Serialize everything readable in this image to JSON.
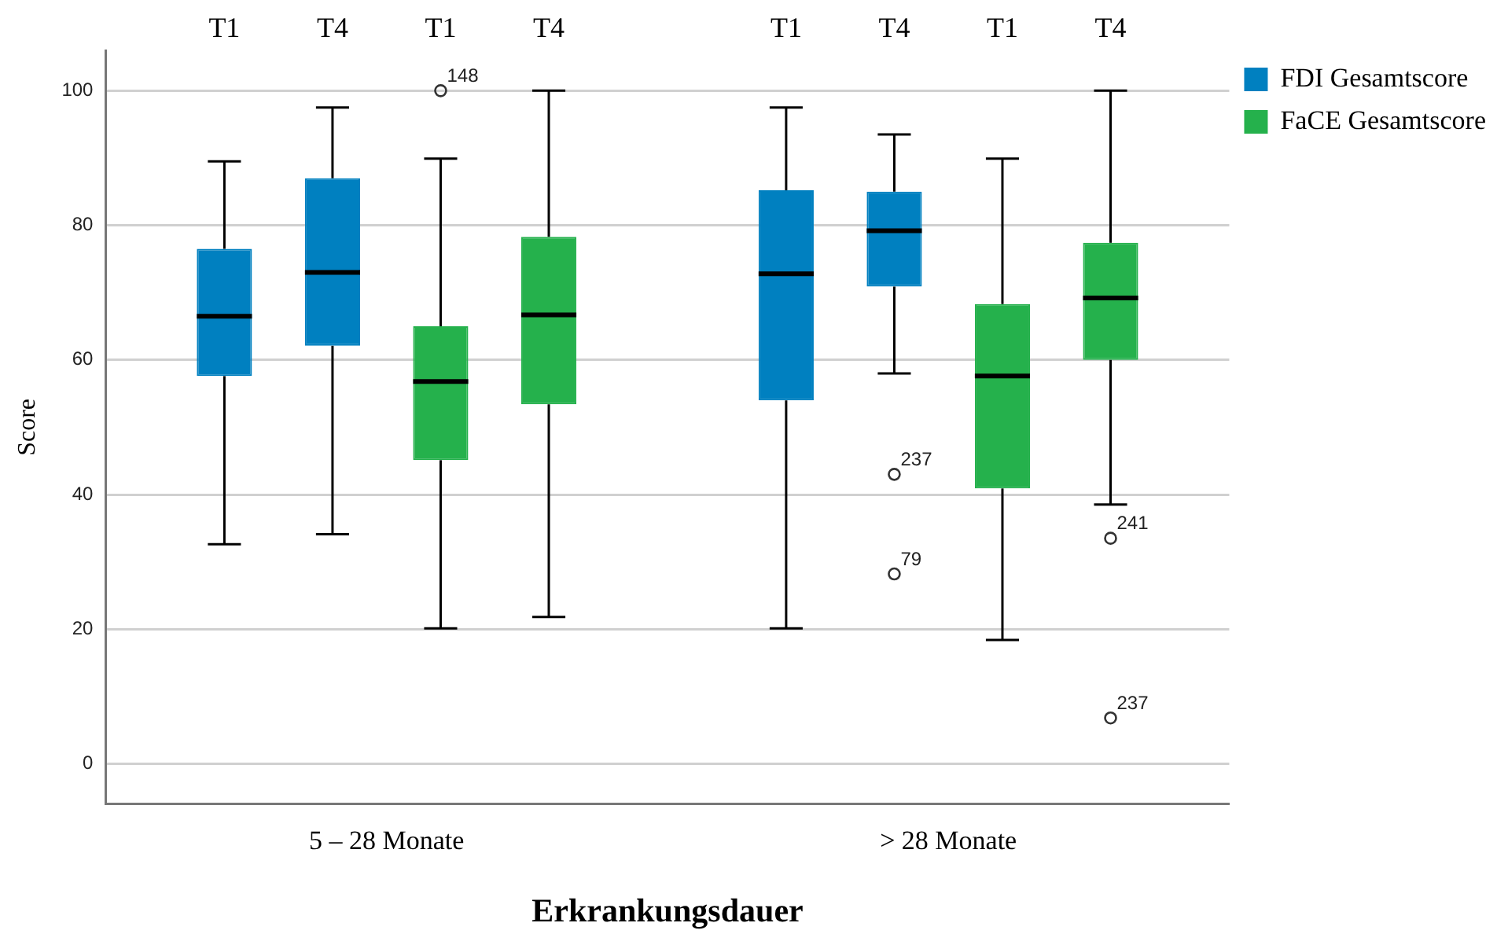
{
  "chart_data": {
    "type": "box",
    "categories": [
      "5 – 28 Monate",
      "> 28 Monate"
    ],
    "xlabel": "Erkrankungsdauer",
    "ylabel": "Score",
    "ylim": [
      -6,
      106
    ],
    "yticks": [
      0,
      20,
      40,
      60,
      80,
      100
    ],
    "grid": "y",
    "legend": "top right",
    "series": [
      {
        "name": "FDI Gesamtscore",
        "color": "#0080c0",
        "boxes": [
          {
            "low": 32.6,
            "q1": 57.6,
            "median": 66.5,
            "q3": 76.5,
            "high": 89.5
          },
          {
            "low": 20.1,
            "q1": 54,
            "median": 72.8,
            "q3": 85.2,
            "high": 97.5
          }
        ]
      },
      {
        "color": "#0080c0",
        "boxes": [
          {
            "low": 34.1,
            "q1": 62.1,
            "median": 73,
            "q3": 87,
            "high": 97.5
          },
          {
            "low": 58,
            "q1": 70.9,
            "median": 79.2,
            "q3": 85,
            "high": 93.5,
            "outliers": [
              43,
              28.2
            ]
          }
        ]
      },
      {
        "name": "FaCE Gesamtscore",
        "color": "#25b14c",
        "boxes": [
          {
            "low": 20.1,
            "q1": 45.1,
            "median": 56.8,
            "q3": 65,
            "high": 89.9,
            "outliers": [
              100
            ]
          },
          {
            "low": 18.4,
            "q1": 40.9,
            "median": 57.6,
            "q3": 68.3,
            "high": 89.9
          }
        ]
      },
      {
        "color": "#25b14c",
        "boxes": [
          {
            "low": 21.8,
            "q1": 53.4,
            "median": 66.7,
            "q3": 78.3,
            "high": 100
          },
          {
            "low": 38.5,
            "q1": 60,
            "median": 69.2,
            "q3": 77.4,
            "high": 100,
            "outliers": [
              33.5,
              6.8
            ]
          }
        ]
      }
    ],
    "annotations": [
      "T1",
      "T4",
      "T1",
      "T4",
      "T1",
      "T4",
      "T1",
      "T4",
      "148",
      "237",
      "79",
      "241",
      "237"
    ]
  }
}
